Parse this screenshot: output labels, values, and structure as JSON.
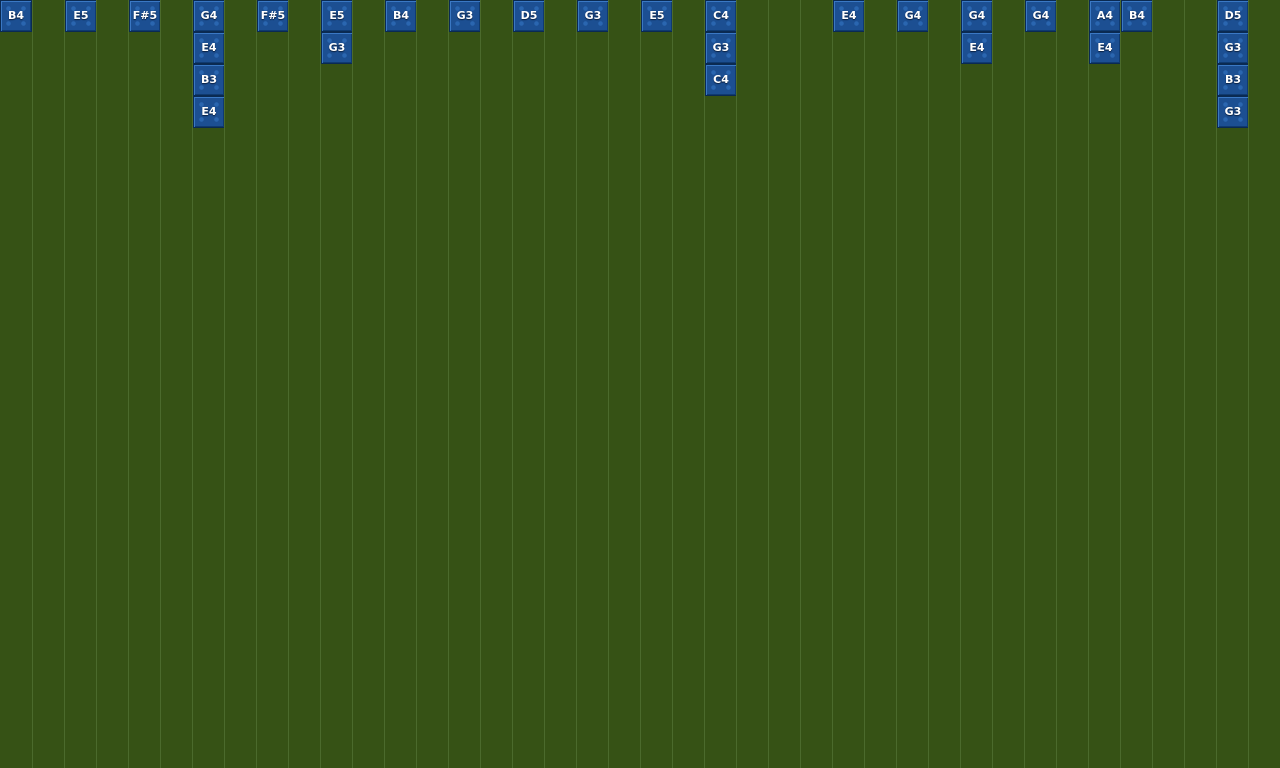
{
  "colors": {
    "background": "#365215",
    "gridline": "#4b6a2c",
    "note_fill": "#1c4f92",
    "note_border": "#0a2a52",
    "note_text": "#ffffff"
  },
  "columns": [
    [
      "B4"
    ],
    [],
    [
      "E5"
    ],
    [],
    [
      "F#5"
    ],
    [],
    [
      "G4",
      "E4",
      "B3",
      "E4"
    ],
    [],
    [
      "F#5"
    ],
    [],
    [
      "E5",
      "G3"
    ],
    [],
    [
      "B4"
    ],
    [],
    [
      "G3"
    ],
    [],
    [
      "D5"
    ],
    [],
    [
      "G3"
    ],
    [],
    [
      "E5"
    ],
    [],
    [
      "C4",
      "G3",
      "C4"
    ],
    [],
    [],
    [],
    [
      "E4"
    ],
    [],
    [
      "G4"
    ],
    [],
    [
      "G4",
      "E4"
    ],
    [],
    [
      "G4"
    ],
    [],
    [
      "A4",
      "E4"
    ],
    [
      "B4"
    ],
    [],
    [],
    [
      "D5",
      "G3",
      "B3",
      "G3"
    ],
    []
  ]
}
